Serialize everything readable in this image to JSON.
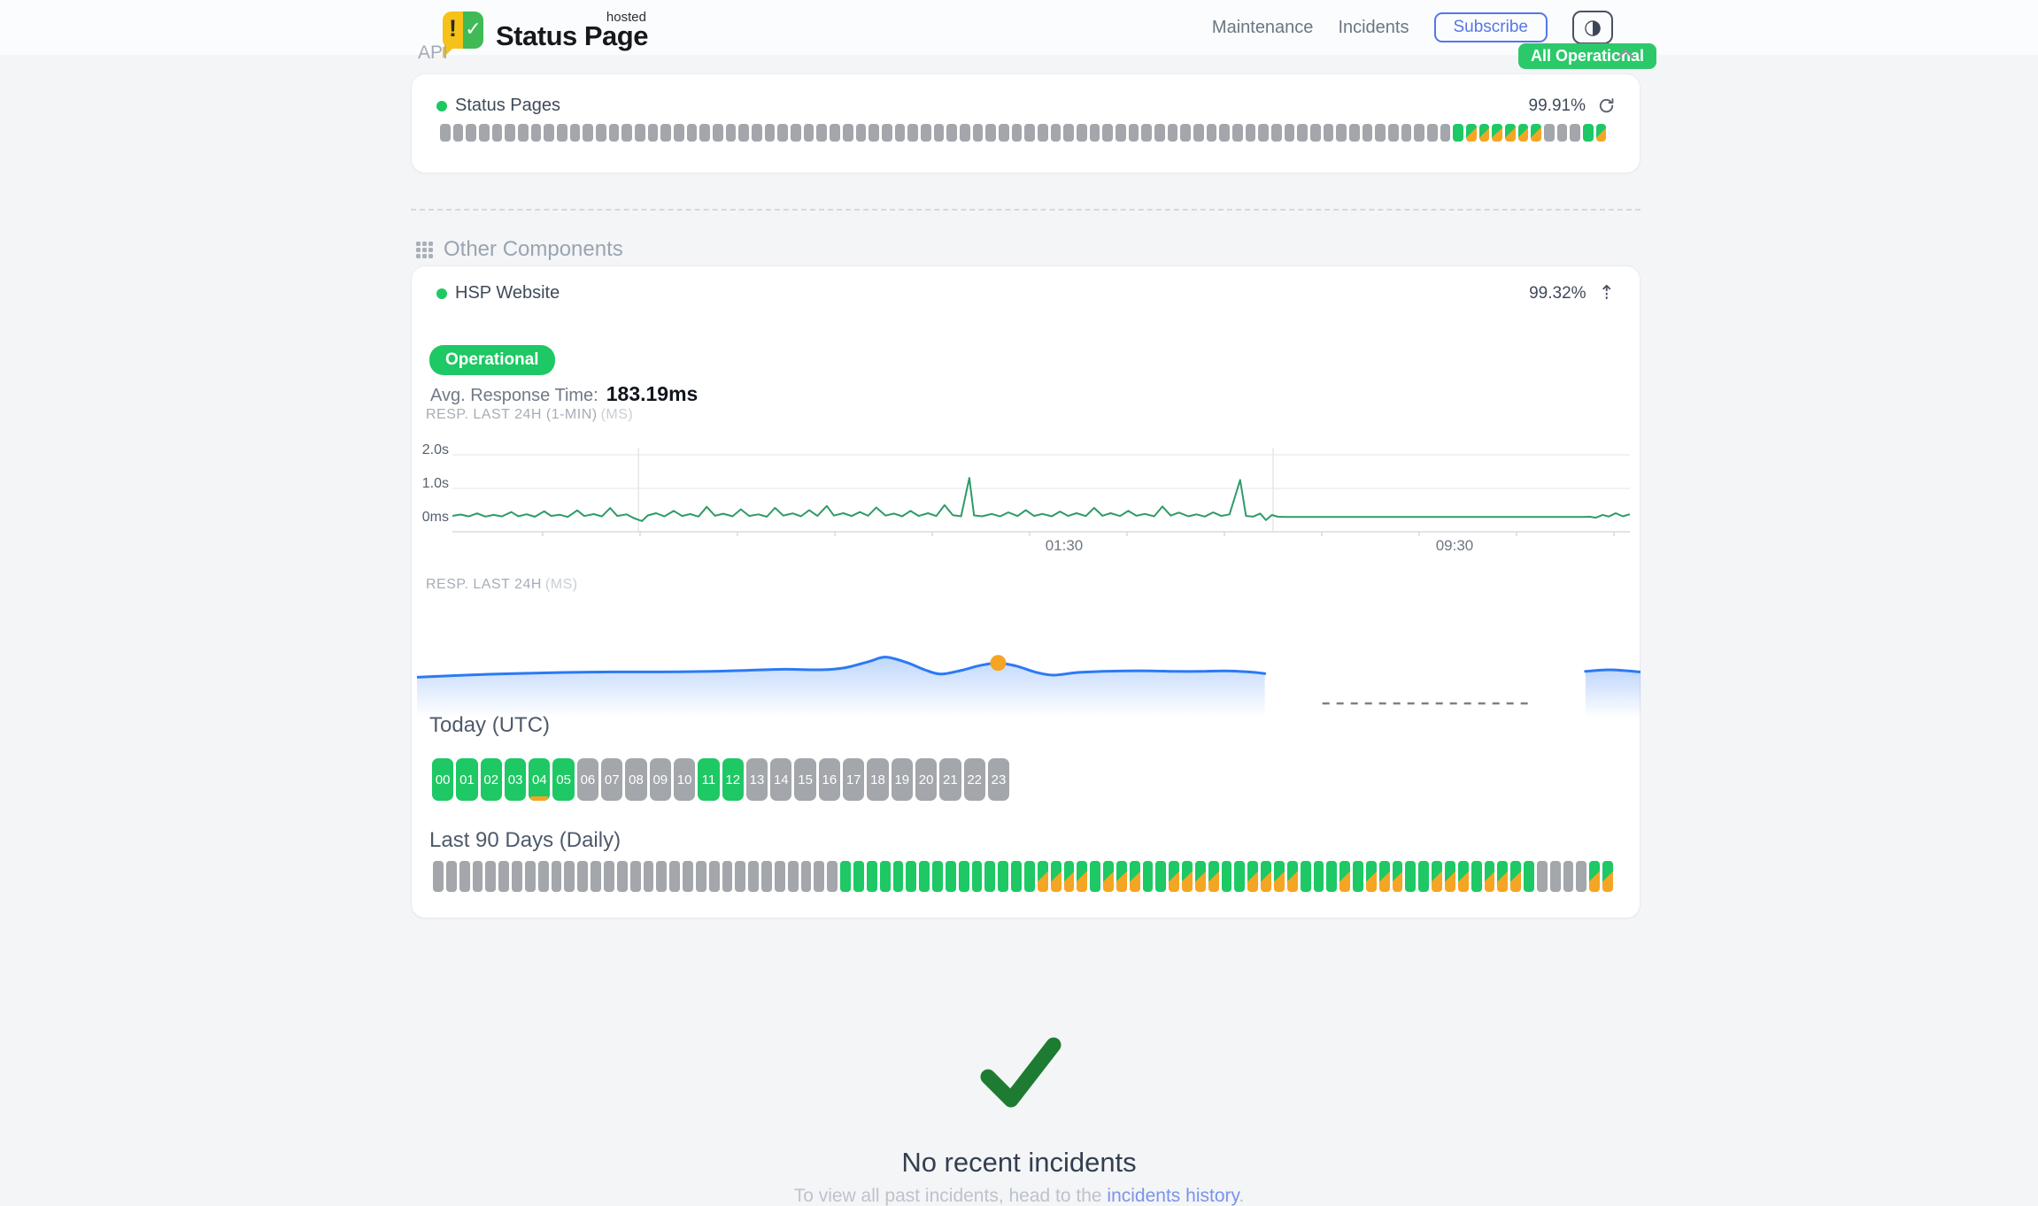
{
  "header": {
    "logo_text": "Status Page",
    "logo_hosted": "hosted",
    "logo_icon_exclaim": "!",
    "logo_icon_check": "✓",
    "nav": [
      "Maintenance",
      "Incidents"
    ],
    "subscribe_label": "Subscribe",
    "theme_icon": "◑",
    "status_badge": "All Operational"
  },
  "api_section": {
    "title": "API",
    "component_name": "Status Pages",
    "uptime": "99.91%",
    "bars_rle": [
      [
        "g",
        78
      ],
      [
        "o",
        1
      ],
      [
        "d",
        6
      ],
      [
        "g",
        3
      ],
      [
        "o",
        1
      ],
      [
        "d",
        1
      ]
    ]
  },
  "other": {
    "title": "Other Components",
    "component_name": "HSP Website",
    "uptime": "99.32%",
    "trend_icon": "⇡",
    "status_pill": "Operational",
    "avg_label": "Avg. Response Time:",
    "avg_value": "183.19ms",
    "chart1_label": "RESP. LAST 24H (1-MIN)",
    "chart1_unit": "(MS)",
    "chart2_label": "RESP. LAST 24H",
    "chart2_unit": "(MS)",
    "today_title": "Today (UTC)",
    "hours": [
      {
        "label": "00",
        "status": "ok"
      },
      {
        "label": "01",
        "status": "ok"
      },
      {
        "label": "02",
        "status": "ok"
      },
      {
        "label": "03",
        "status": "ok"
      },
      {
        "label": "04",
        "status": "ok-deg"
      },
      {
        "label": "05",
        "status": "ok"
      },
      {
        "label": "06",
        "status": "idle"
      },
      {
        "label": "07",
        "status": "idle"
      },
      {
        "label": "08",
        "status": "idle"
      },
      {
        "label": "09",
        "status": "idle"
      },
      {
        "label": "10",
        "status": "idle"
      },
      {
        "label": "11",
        "status": "ok"
      },
      {
        "label": "12",
        "status": "ok"
      },
      {
        "label": "13",
        "status": "idle"
      },
      {
        "label": "14",
        "status": "idle"
      },
      {
        "label": "15",
        "status": "idle"
      },
      {
        "label": "16",
        "status": "idle"
      },
      {
        "label": "17",
        "status": "idle"
      },
      {
        "label": "18",
        "status": "idle"
      },
      {
        "label": "19",
        "status": "idle"
      },
      {
        "label": "20",
        "status": "idle"
      },
      {
        "label": "21",
        "status": "idle"
      },
      {
        "label": "22",
        "status": "idle"
      },
      {
        "label": "23",
        "status": "idle"
      }
    ],
    "last90_title": "Last 90 Days (Daily)",
    "last90_rle": [
      [
        "g",
        31
      ],
      [
        "o",
        15
      ],
      [
        "d",
        4
      ],
      [
        "o",
        1
      ],
      [
        "d",
        3
      ],
      [
        "o",
        2
      ],
      [
        "d",
        4
      ],
      [
        "o",
        2
      ],
      [
        "d",
        4
      ],
      [
        "o",
        3
      ],
      [
        "d",
        1
      ],
      [
        "o",
        1
      ],
      [
        "d",
        3
      ],
      [
        "o",
        2
      ],
      [
        "d",
        3
      ],
      [
        "o",
        1
      ],
      [
        "d",
        3
      ],
      [
        "o",
        1
      ],
      [
        "g",
        4
      ],
      [
        "d",
        2
      ]
    ]
  },
  "footer": {
    "title": "No recent incidents",
    "text_prefix": "To view all past incidents, head to the ",
    "link": "incidents history",
    "suffix": "."
  },
  "colors": {
    "success": "#1ec864",
    "warning": "#f5a524",
    "idle": "#a3a6ab",
    "accent": "#5577e8",
    "link": "#7b93ea",
    "chart_green": "#2e9b67",
    "chart_blue": "#2b7af5",
    "check": "#1d7c31"
  },
  "chart_data": [
    {
      "id": "resp-last-24h-1min",
      "type": "line",
      "title": "RESP. LAST 24H (1-MIN) (MS)",
      "color": "#2e9b67",
      "ylim": [
        0,
        2200
      ],
      "yticks": [
        {
          "label": "2.0s",
          "value": 2000
        },
        {
          "label": "1.0s",
          "value": 1000
        },
        {
          "label": "0ms",
          "value": 0
        }
      ],
      "xticks": [
        {
          "label": "01:30",
          "pos": 55.4
        },
        {
          "label": "09:30",
          "pos": 88.6
        }
      ],
      "vgrid_pos": [
        15.8,
        69.7
      ],
      "grid": true,
      "points": [
        [
          0,
          185
        ],
        [
          0.7,
          225
        ],
        [
          1.4,
          168
        ],
        [
          2.1,
          258
        ],
        [
          2.8,
          162
        ],
        [
          3.5,
          212
        ],
        [
          4.2,
          168
        ],
        [
          5,
          298
        ],
        [
          5.6,
          172
        ],
        [
          6.3,
          232
        ],
        [
          7,
          158
        ],
        [
          7.8,
          318
        ],
        [
          8.4,
          182
        ],
        [
          9.1,
          218
        ],
        [
          9.8,
          152
        ],
        [
          10.6,
          348
        ],
        [
          11.2,
          178
        ],
        [
          12,
          238
        ],
        [
          12.7,
          168
        ],
        [
          13.4,
          415
        ],
        [
          14,
          182
        ],
        [
          14.8,
          228
        ],
        [
          15.4,
          118
        ],
        [
          16.1,
          28
        ],
        [
          16.6,
          198
        ],
        [
          17.3,
          262
        ],
        [
          18,
          168
        ],
        [
          18.8,
          332
        ],
        [
          19.5,
          182
        ],
        [
          20.2,
          238
        ],
        [
          20.9,
          162
        ],
        [
          21.6,
          452
        ],
        [
          22.3,
          188
        ],
        [
          23,
          248
        ],
        [
          23.8,
          172
        ],
        [
          24.5,
          378
        ],
        [
          25.2,
          182
        ],
        [
          26,
          228
        ],
        [
          26.7,
          158
        ],
        [
          27.4,
          422
        ],
        [
          28.1,
          192
        ],
        [
          28.9,
          258
        ],
        [
          29.6,
          172
        ],
        [
          30.3,
          352
        ],
        [
          31,
          182
        ],
        [
          31.8,
          478
        ],
        [
          32.4,
          192
        ],
        [
          33.2,
          262
        ],
        [
          33.9,
          178
        ],
        [
          34.6,
          298
        ],
        [
          35.3,
          188
        ],
        [
          36,
          432
        ],
        [
          36.8,
          192
        ],
        [
          37.5,
          252
        ],
        [
          38.2,
          172
        ],
        [
          38.9,
          332
        ],
        [
          39.6,
          182
        ],
        [
          40.4,
          262
        ],
        [
          41.1,
          178
        ],
        [
          41.8,
          502
        ],
        [
          42.5,
          202
        ],
        [
          43.2,
          172
        ],
        [
          43.9,
          1312
        ],
        [
          44.3,
          198
        ],
        [
          45,
          172
        ],
        [
          45.8,
          242
        ],
        [
          46.5,
          168
        ],
        [
          47.2,
          288
        ],
        [
          48,
          178
        ],
        [
          48.7,
          352
        ],
        [
          49.4,
          182
        ],
        [
          50.1,
          242
        ],
        [
          50.9,
          172
        ],
        [
          51.6,
          312
        ],
        [
          52.3,
          182
        ],
        [
          53,
          262
        ],
        [
          53.8,
          178
        ],
        [
          54.5,
          422
        ],
        [
          55.2,
          188
        ],
        [
          55.9,
          262
        ],
        [
          56.7,
          178
        ],
        [
          57.4,
          332
        ],
        [
          58.1,
          188
        ],
        [
          58.8,
          242
        ],
        [
          59.6,
          172
        ],
        [
          60.3,
          462
        ],
        [
          61,
          192
        ],
        [
          61.7,
          282
        ],
        [
          62.5,
          172
        ],
        [
          63.2,
          228
        ],
        [
          63.9,
          162
        ],
        [
          64.6,
          288
        ],
        [
          65.3,
          182
        ],
        [
          66,
          228
        ],
        [
          66.9,
          1252
        ],
        [
          67.4,
          182
        ],
        [
          68,
          160
        ],
        [
          68.6,
          252
        ],
        [
          69.1,
          58
        ],
        [
          69.6,
          210
        ],
        [
          70.1,
          158
        ],
        [
          70.8,
          152
        ],
        [
          96,
          152
        ],
        [
          96.6,
          158
        ],
        [
          97.1,
          128
        ],
        [
          97.7,
          212
        ],
        [
          98.2,
          162
        ],
        [
          98.8,
          262
        ],
        [
          99.4,
          172
        ],
        [
          100,
          232
        ]
      ]
    },
    {
      "id": "resp-last-24h",
      "type": "area",
      "title": "RESP. LAST 24H (MS)",
      "color": "#2b7af5",
      "ylim": [
        0,
        400
      ],
      "grid": false,
      "marker": {
        "pos": 47.5,
        "value": 193,
        "color": "#f5a524"
      },
      "missing_gap": {
        "from": 74,
        "to": 90.8
      },
      "segments": [
        [
          [
            0,
            166
          ],
          [
            4,
            170
          ],
          [
            8,
            173
          ],
          [
            12,
            175
          ],
          [
            16,
            176
          ],
          [
            20,
            176
          ],
          [
            24,
            177
          ],
          [
            27,
            179
          ],
          [
            30,
            181
          ],
          [
            33,
            180
          ],
          [
            35,
            184
          ],
          [
            37,
            196
          ],
          [
            38.3,
            204
          ],
          [
            40,
            194
          ],
          [
            41.5,
            180
          ],
          [
            42.8,
            172
          ],
          [
            44.5,
            179
          ],
          [
            46,
            188
          ],
          [
            47.5,
            193
          ],
          [
            49,
            187
          ],
          [
            50.5,
            176
          ],
          [
            52,
            170
          ],
          [
            54,
            175
          ],
          [
            56,
            177
          ],
          [
            58,
            178
          ],
          [
            60,
            178
          ],
          [
            62,
            177
          ],
          [
            64,
            177
          ],
          [
            66,
            178
          ],
          [
            68,
            176
          ],
          [
            69.3,
            173
          ]
        ],
        [
          [
            95.5,
            177
          ],
          [
            97.5,
            180
          ],
          [
            100,
            176
          ]
        ]
      ]
    }
  ]
}
